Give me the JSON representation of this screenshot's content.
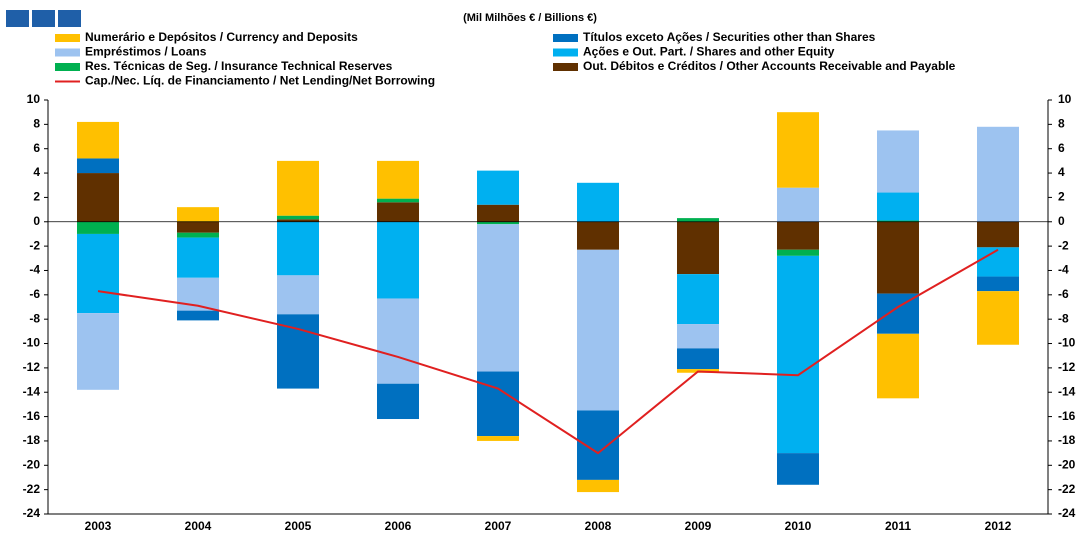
{
  "chart_data": {
    "type": "bar",
    "stacked": true,
    "title": "(Mil Milhões € / Billions €)",
    "categories": [
      "2003",
      "2004",
      "2005",
      "2006",
      "2007",
      "2008",
      "2009",
      "2010",
      "2011",
      "2012"
    ],
    "series": [
      {
        "name": "Numerário e Depósitos / Currency and Deposits",
        "color": "#ffc000",
        "values": [
          3.0,
          1.2,
          4.5,
          3.1,
          -0.4,
          -1.0,
          -0.3,
          6.2,
          -5.3,
          -4.4
        ]
      },
      {
        "name": "Títulos exceto Ações / Securities other than Shares",
        "color": "#0070c0",
        "values": [
          1.2,
          -0.8,
          -6.1,
          -2.9,
          -5.3,
          -5.7,
          -1.7,
          -2.6,
          -3.3,
          -1.2
        ]
      },
      {
        "name": "Empréstimos / Loans",
        "color": "#9dc3f0",
        "values": [
          -6.3,
          -2.7,
          -3.2,
          -7.0,
          -12.1,
          -13.2,
          -2.0,
          2.8,
          5.1,
          7.8
        ]
      },
      {
        "name": "Ações e Out. Part. / Shares and other Equity",
        "color": "#00b0f0",
        "values": [
          -6.5,
          -3.3,
          -4.4,
          -6.3,
          2.8,
          3.2,
          -4.1,
          -16.2,
          2.3,
          -2.4
        ]
      },
      {
        "name": "Res. Técnicas de Seg. / Insurance Technical Reserves",
        "color": "#00b050",
        "values": [
          -1.0,
          -0.4,
          0.3,
          0.3,
          -0.2,
          0,
          0.3,
          -0.5,
          0.1,
          0
        ]
      },
      {
        "name": "Out. Débitos e Créditos / Other Accounts Receivable and Payable",
        "color": "#603000",
        "values": [
          4.0,
          -0.9,
          0.2,
          1.6,
          1.4,
          -2.3,
          -4.3,
          -2.3,
          -5.9,
          -2.1
        ]
      },
      {
        "name": "Cap./Nec. Líq. de Financiamento / Net Lending/Net Borrowing",
        "color": "#e02020",
        "type": "line",
        "values": [
          -5.7,
          -6.9,
          -8.8,
          -11.1,
          -13.7,
          -19.0,
          -12.3,
          -12.6,
          -7.0,
          -2.3
        ]
      }
    ],
    "ylim": [
      -24,
      10
    ],
    "yticks": [
      -24,
      -22,
      -20,
      -18,
      -16,
      -14,
      -12,
      -10,
      -8,
      -6,
      -4,
      -2,
      0,
      2,
      4,
      6,
      8,
      10
    ]
  }
}
